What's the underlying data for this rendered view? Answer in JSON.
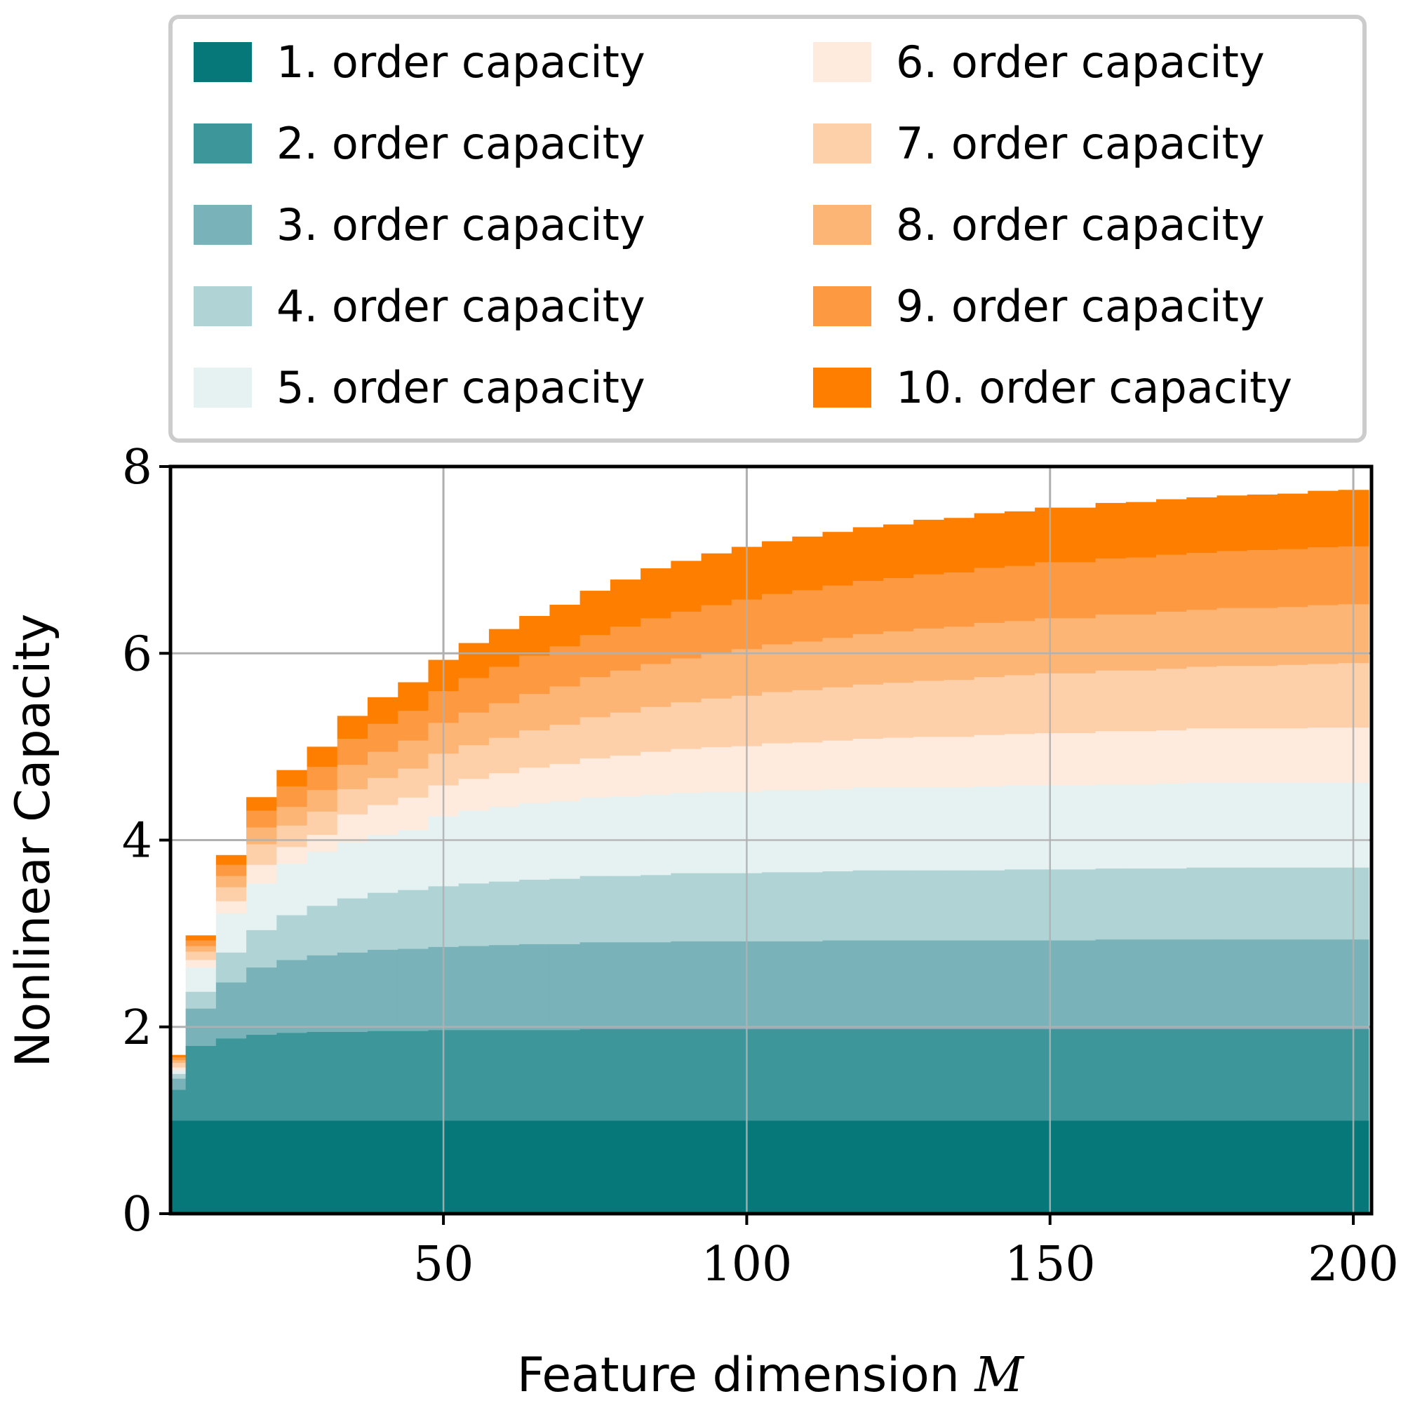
{
  "chart_data": {
    "type": "bar",
    "subtype": "stacked",
    "title": "",
    "xlabel": "Feature dimension",
    "xlabel_symbol": "M",
    "ylabel": "Nonlinear Capacity",
    "xlim": [
      5,
      203
    ],
    "ylim": [
      0,
      8
    ],
    "xticks": [
      50,
      100,
      150,
      200
    ],
    "yticks": [
      0,
      2,
      4,
      6,
      8
    ],
    "grid": true,
    "legend_position": "top",
    "x": [
      5,
      10,
      15,
      20,
      25,
      30,
      35,
      40,
      45,
      50,
      55,
      60,
      65,
      70,
      75,
      80,
      85,
      90,
      95,
      100,
      105,
      110,
      115,
      120,
      125,
      130,
      135,
      140,
      145,
      150,
      155,
      160,
      165,
      170,
      175,
      180,
      185,
      190,
      195,
      200
    ],
    "series": [
      {
        "name": "1. order capacity",
        "color": "#077879",
        "values": [
          1.0,
          1.0,
          1.0,
          1.0,
          1.0,
          1.0,
          1.0,
          1.0,
          1.0,
          1.0,
          1.0,
          1.0,
          1.0,
          1.0,
          1.0,
          1.0,
          1.0,
          1.0,
          1.0,
          1.0,
          1.0,
          1.0,
          1.0,
          1.0,
          1.0,
          1.0,
          1.0,
          1.0,
          1.0,
          1.0,
          1.0,
          1.0,
          1.0,
          1.0,
          1.0,
          1.0,
          1.0,
          1.0,
          1.0,
          1.0
        ]
      },
      {
        "name": "2. order capacity",
        "color": "#3d979a",
        "values": [
          0.33,
          0.8,
          0.88,
          0.92,
          0.94,
          0.95,
          0.95,
          0.96,
          0.96,
          0.97,
          0.97,
          0.97,
          0.97,
          0.97,
          0.98,
          0.98,
          0.98,
          0.98,
          0.98,
          0.98,
          0.98,
          0.98,
          0.98,
          0.98,
          0.98,
          0.98,
          0.98,
          0.98,
          0.98,
          0.98,
          0.98,
          0.98,
          0.98,
          0.98,
          0.98,
          0.98,
          0.98,
          0.98,
          0.98,
          0.98
        ]
      },
      {
        "name": "3. order capacity",
        "color": "#79b3b9",
        "values": [
          0.12,
          0.4,
          0.6,
          0.72,
          0.78,
          0.82,
          0.85,
          0.87,
          0.88,
          0.89,
          0.9,
          0.91,
          0.92,
          0.92,
          0.93,
          0.93,
          0.93,
          0.94,
          0.94,
          0.94,
          0.94,
          0.94,
          0.95,
          0.95,
          0.95,
          0.95,
          0.95,
          0.95,
          0.95,
          0.95,
          0.95,
          0.96,
          0.96,
          0.96,
          0.96,
          0.96,
          0.96,
          0.96,
          0.96,
          0.96
        ]
      },
      {
        "name": "4. order capacity",
        "color": "#b0d4d5",
        "values": [
          0.05,
          0.18,
          0.32,
          0.4,
          0.48,
          0.53,
          0.58,
          0.61,
          0.63,
          0.65,
          0.67,
          0.68,
          0.69,
          0.7,
          0.71,
          0.71,
          0.72,
          0.73,
          0.73,
          0.73,
          0.74,
          0.74,
          0.74,
          0.75,
          0.75,
          0.75,
          0.75,
          0.75,
          0.76,
          0.76,
          0.76,
          0.76,
          0.76,
          0.76,
          0.77,
          0.77,
          0.77,
          0.77,
          0.77,
          0.77
        ]
      },
      {
        "name": "5. order capacity",
        "color": "#e6f1f1",
        "values": [
          0.04,
          0.26,
          0.42,
          0.5,
          0.55,
          0.58,
          0.6,
          0.62,
          0.64,
          0.75,
          0.78,
          0.8,
          0.82,
          0.83,
          0.84,
          0.85,
          0.86,
          0.86,
          0.87,
          0.87,
          0.88,
          0.88,
          0.88,
          0.89,
          0.89,
          0.89,
          0.89,
          0.9,
          0.9,
          0.9,
          0.9,
          0.9,
          0.9,
          0.91,
          0.91,
          0.91,
          0.91,
          0.91,
          0.91,
          0.91
        ]
      },
      {
        "name": "6. order capacity",
        "color": "#feebde",
        "values": [
          0.03,
          0.08,
          0.13,
          0.2,
          0.18,
          0.18,
          0.3,
          0.32,
          0.35,
          0.33,
          0.34,
          0.36,
          0.38,
          0.4,
          0.42,
          0.44,
          0.46,
          0.47,
          0.48,
          0.49,
          0.5,
          0.51,
          0.52,
          0.52,
          0.53,
          0.54,
          0.54,
          0.55,
          0.55,
          0.56,
          0.56,
          0.57,
          0.57,
          0.57,
          0.58,
          0.58,
          0.58,
          0.58,
          0.59,
          0.59
        ]
      },
      {
        "name": "7. order capacity",
        "color": "#fdd0a9",
        "values": [
          0.05,
          0.09,
          0.15,
          0.22,
          0.23,
          0.25,
          0.27,
          0.29,
          0.31,
          0.34,
          0.36,
          0.38,
          0.4,
          0.42,
          0.44,
          0.46,
          0.48,
          0.5,
          0.52,
          0.54,
          0.55,
          0.56,
          0.57,
          0.58,
          0.59,
          0.6,
          0.61,
          0.62,
          0.63,
          0.64,
          0.64,
          0.65,
          0.65,
          0.66,
          0.66,
          0.67,
          0.67,
          0.68,
          0.68,
          0.69
        ]
      },
      {
        "name": "8. order capacity",
        "color": "#fdb575",
        "values": [
          0.03,
          0.06,
          0.12,
          0.18,
          0.2,
          0.23,
          0.26,
          0.28,
          0.3,
          0.33,
          0.35,
          0.37,
          0.39,
          0.41,
          0.43,
          0.45,
          0.46,
          0.47,
          0.48,
          0.5,
          0.51,
          0.52,
          0.53,
          0.54,
          0.55,
          0.56,
          0.57,
          0.58,
          0.58,
          0.59,
          0.59,
          0.6,
          0.6,
          0.61,
          0.61,
          0.62,
          0.62,
          0.62,
          0.63,
          0.63
        ]
      },
      {
        "name": "9. order capacity",
        "color": "#fd9a41",
        "values": [
          0.03,
          0.06,
          0.12,
          0.18,
          0.22,
          0.25,
          0.28,
          0.3,
          0.32,
          0.34,
          0.37,
          0.39,
          0.41,
          0.43,
          0.45,
          0.47,
          0.49,
          0.5,
          0.52,
          0.53,
          0.54,
          0.55,
          0.56,
          0.57,
          0.57,
          0.58,
          0.58,
          0.59,
          0.59,
          0.6,
          0.6,
          0.6,
          0.61,
          0.61,
          0.61,
          0.61,
          0.62,
          0.62,
          0.62,
          0.62
        ]
      },
      {
        "name": "10. order capacity",
        "color": "#fe7e00",
        "values": [
          0.02,
          0.05,
          0.1,
          0.14,
          0.17,
          0.21,
          0.24,
          0.28,
          0.3,
          0.33,
          0.37,
          0.4,
          0.42,
          0.44,
          0.47,
          0.5,
          0.53,
          0.54,
          0.55,
          0.56,
          0.56,
          0.57,
          0.57,
          0.57,
          0.57,
          0.58,
          0.58,
          0.58,
          0.58,
          0.58,
          0.58,
          0.59,
          0.59,
          0.59,
          0.59,
          0.59,
          0.59,
          0.59,
          0.6,
          0.6
        ]
      }
    ]
  }
}
